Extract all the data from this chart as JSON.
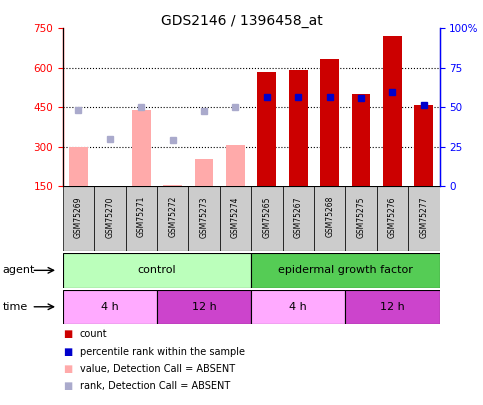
{
  "title": "GDS2146 / 1396458_at",
  "samples": [
    "GSM75269",
    "GSM75270",
    "GSM75271",
    "GSM75272",
    "GSM75273",
    "GSM75274",
    "GSM75265",
    "GSM75267",
    "GSM75268",
    "GSM75275",
    "GSM75276",
    "GSM75277"
  ],
  "absent": [
    true,
    true,
    true,
    true,
    true,
    true,
    false,
    false,
    false,
    false,
    false,
    false
  ],
  "bar_values": [
    300,
    0,
    440,
    155,
    255,
    305,
    585,
    590,
    635,
    500,
    720,
    460
  ],
  "rank_values": [
    440,
    330,
    450,
    325,
    435,
    450,
    490,
    488,
    490,
    487,
    510,
    460
  ],
  "ylim": [
    150,
    750
  ],
  "y_ticks_left": [
    150,
    300,
    450,
    600,
    750
  ],
  "y_ticks_right_vals": [
    0,
    25,
    50,
    75,
    100
  ],
  "bar_color_absent": "#ffaaaa",
  "bar_color_present": "#cc0000",
  "dot_color_absent": "#aaaacc",
  "dot_color_present": "#0000cc",
  "agent_control_color": "#bbffbb",
  "agent_egf_color": "#55cc55",
  "time_4h_color": "#ffaaff",
  "time_12h_color": "#cc44cc",
  "sample_box_color": "#cccccc",
  "control_label": "control",
  "egf_label": "epidermal growth factor",
  "agent_label": "agent",
  "time_label": "time",
  "legend_colors": [
    "#cc0000",
    "#0000cc",
    "#ffaaaa",
    "#aaaacc"
  ],
  "legend_labels": [
    "count",
    "percentile rank within the sample",
    "value, Detection Call = ABSENT",
    "rank, Detection Call = ABSENT"
  ]
}
